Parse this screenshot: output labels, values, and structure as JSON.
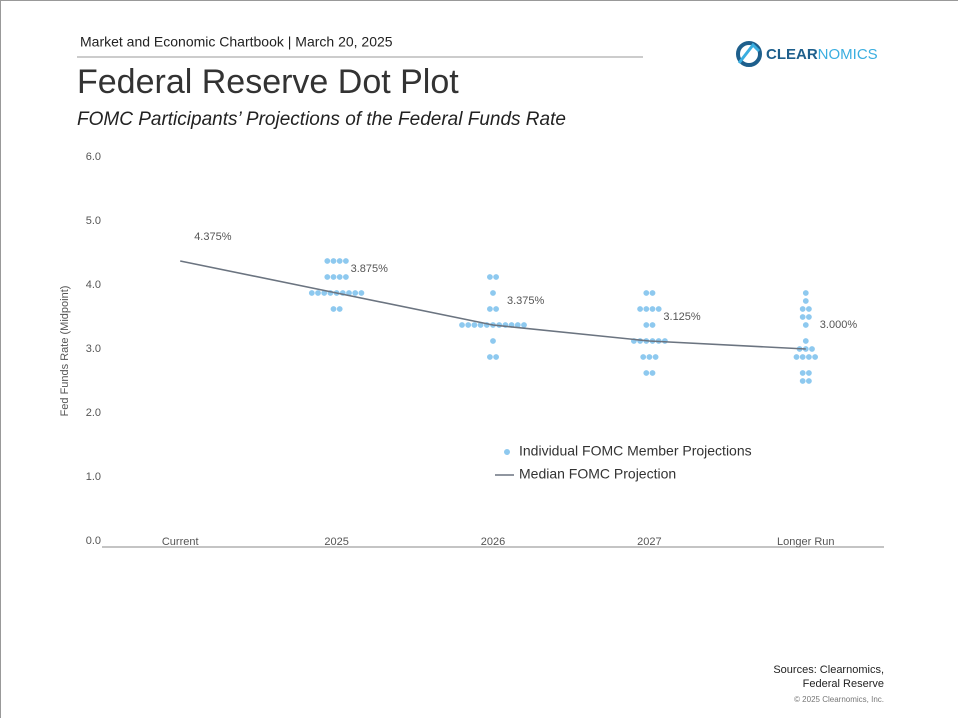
{
  "header": "Market and Economic Chartbook | March 20, 2025",
  "logo": {
    "part1": "CLEAR",
    "part2": "NOMICS"
  },
  "sources": [
    "Sources: Clearnomics,",
    "Federal Reserve"
  ],
  "copyright": "© 2025 Clearnomics, Inc.",
  "chart_data": {
    "type": "dot",
    "title": "Federal Reserve Dot Plot",
    "subtitle": "FOMC Participants’ Projections of the Federal Funds Rate",
    "ylabel": "Fed Funds Rate (Midpoint)",
    "categories": [
      "Current",
      "2025",
      "2026",
      "2027",
      "Longer Run"
    ],
    "ylim": [
      0,
      6
    ],
    "yticks": [
      {
        "value": 0,
        "label": "0.0"
      },
      {
        "value": 1,
        "label": "1.0"
      },
      {
        "value": 2,
        "label": "2.0"
      },
      {
        "value": 3,
        "label": "3.0"
      },
      {
        "value": 4,
        "label": "4.0"
      },
      {
        "value": 5,
        "label": "5.0"
      },
      {
        "value": 6,
        "label": "6.0"
      }
    ],
    "legend": "right",
    "series": [
      {
        "name": "Individual FOMC Member Projections",
        "color": "#8ec9ef",
        "kind": "dots",
        "values": [
          [],
          [
            4.375,
            4.375,
            4.375,
            4.375,
            4.125,
            4.125,
            4.125,
            4.125,
            3.875,
            3.875,
            3.875,
            3.875,
            3.875,
            3.875,
            3.875,
            3.875,
            3.875,
            3.625,
            3.625
          ],
          [
            4.125,
            4.125,
            3.875,
            3.625,
            3.625,
            3.375,
            3.375,
            3.375,
            3.375,
            3.375,
            3.375,
            3.375,
            3.375,
            3.375,
            3.375,
            3.375,
            3.125,
            2.875,
            2.875
          ],
          [
            3.875,
            3.875,
            3.625,
            3.625,
            3.625,
            3.625,
            3.375,
            3.375,
            3.125,
            3.125,
            3.125,
            3.125,
            3.125,
            3.125,
            2.875,
            2.875,
            2.875,
            2.625,
            2.625
          ],
          [
            3.875,
            3.75,
            3.625,
            3.625,
            3.5,
            3.5,
            3.375,
            3.125,
            3.0,
            3.0,
            3.0,
            2.875,
            2.875,
            2.875,
            2.875,
            2.625,
            2.625,
            2.5,
            2.5
          ]
        ]
      },
      {
        "name": "Median FOMC Projection",
        "color": "#6b7480",
        "kind": "line",
        "values": [
          4.375,
          3.875,
          3.375,
          3.125,
          3.0
        ],
        "value_labels": [
          "4.375%",
          "3.875%",
          "3.375%",
          "3.125%",
          "3.000%"
        ]
      }
    ]
  }
}
